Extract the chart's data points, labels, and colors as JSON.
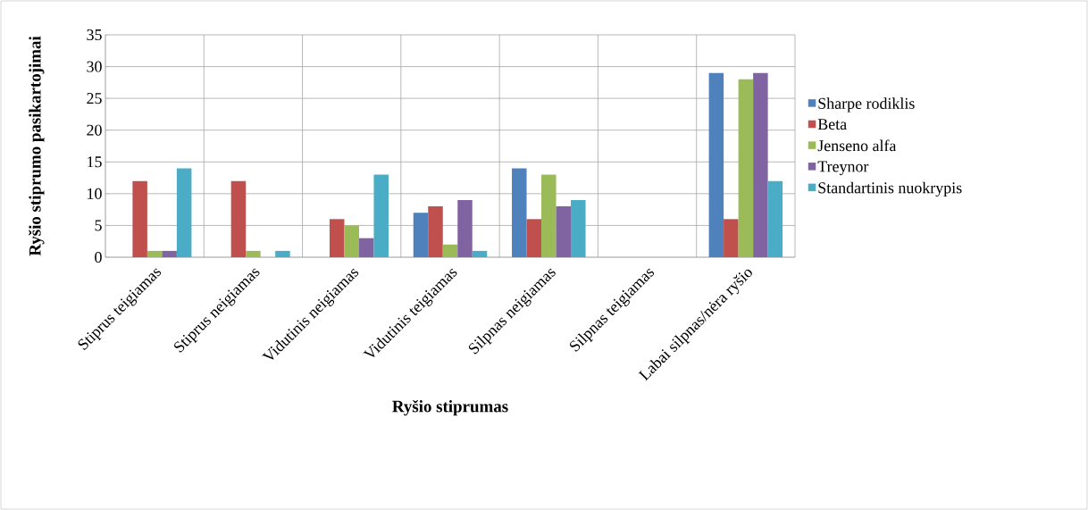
{
  "chart_data": {
    "type": "bar",
    "xlabel": "Ryšio stiprumas",
    "ylabel": "Ryšio stiprumo pasikartojimai",
    "categories": [
      "Stiprus teigiamas",
      "Stiprus neigiamas",
      "Vidutinis neigiamas",
      "Vidutinis teigiamas",
      "Silpnas neigiamas",
      "Silpnas teigiamas",
      "Labai silpnas/nėra ryšio"
    ],
    "series": [
      {
        "name": "Sharpe rodiklis",
        "color": "#4f81bd",
        "values": [
          0,
          0,
          0,
          7,
          14,
          0,
          29
        ]
      },
      {
        "name": "Beta",
        "color": "#c0504d",
        "values": [
          12,
          12,
          6,
          8,
          6,
          0,
          6
        ]
      },
      {
        "name": "Jenseno alfa",
        "color": "#9bbb59",
        "values": [
          1,
          1,
          5,
          2,
          13,
          0,
          28
        ]
      },
      {
        "name": "Treynor",
        "color": "#8064a2",
        "values": [
          1,
          0,
          3,
          9,
          8,
          0,
          29
        ]
      },
      {
        "name": "Standartinis nuokrypis",
        "color": "#4bacc6",
        "values": [
          14,
          1,
          13,
          1,
          9,
          0,
          12
        ]
      }
    ],
    "ylim": [
      0,
      35
    ],
    "yticks": [
      0,
      5,
      10,
      15,
      20,
      25,
      30,
      35
    ],
    "grid": true,
    "legend": "right"
  }
}
